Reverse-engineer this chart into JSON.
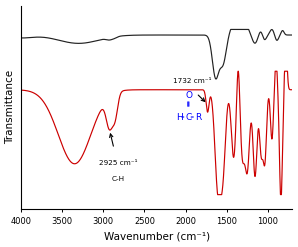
{
  "xlabel": "Wavenumber (cm⁻¹)",
  "ylabel": "Transmittance",
  "black_color": "#222222",
  "red_color": "#cc0000",
  "bg_color": "#ffffff",
  "xticks": [
    4000,
    3500,
    3000,
    2500,
    2000,
    1500,
    1000
  ],
  "xtick_labels": [
    "4000",
    "3500",
    "3000",
    "2500",
    "2000",
    "1500",
    "1000"
  ]
}
